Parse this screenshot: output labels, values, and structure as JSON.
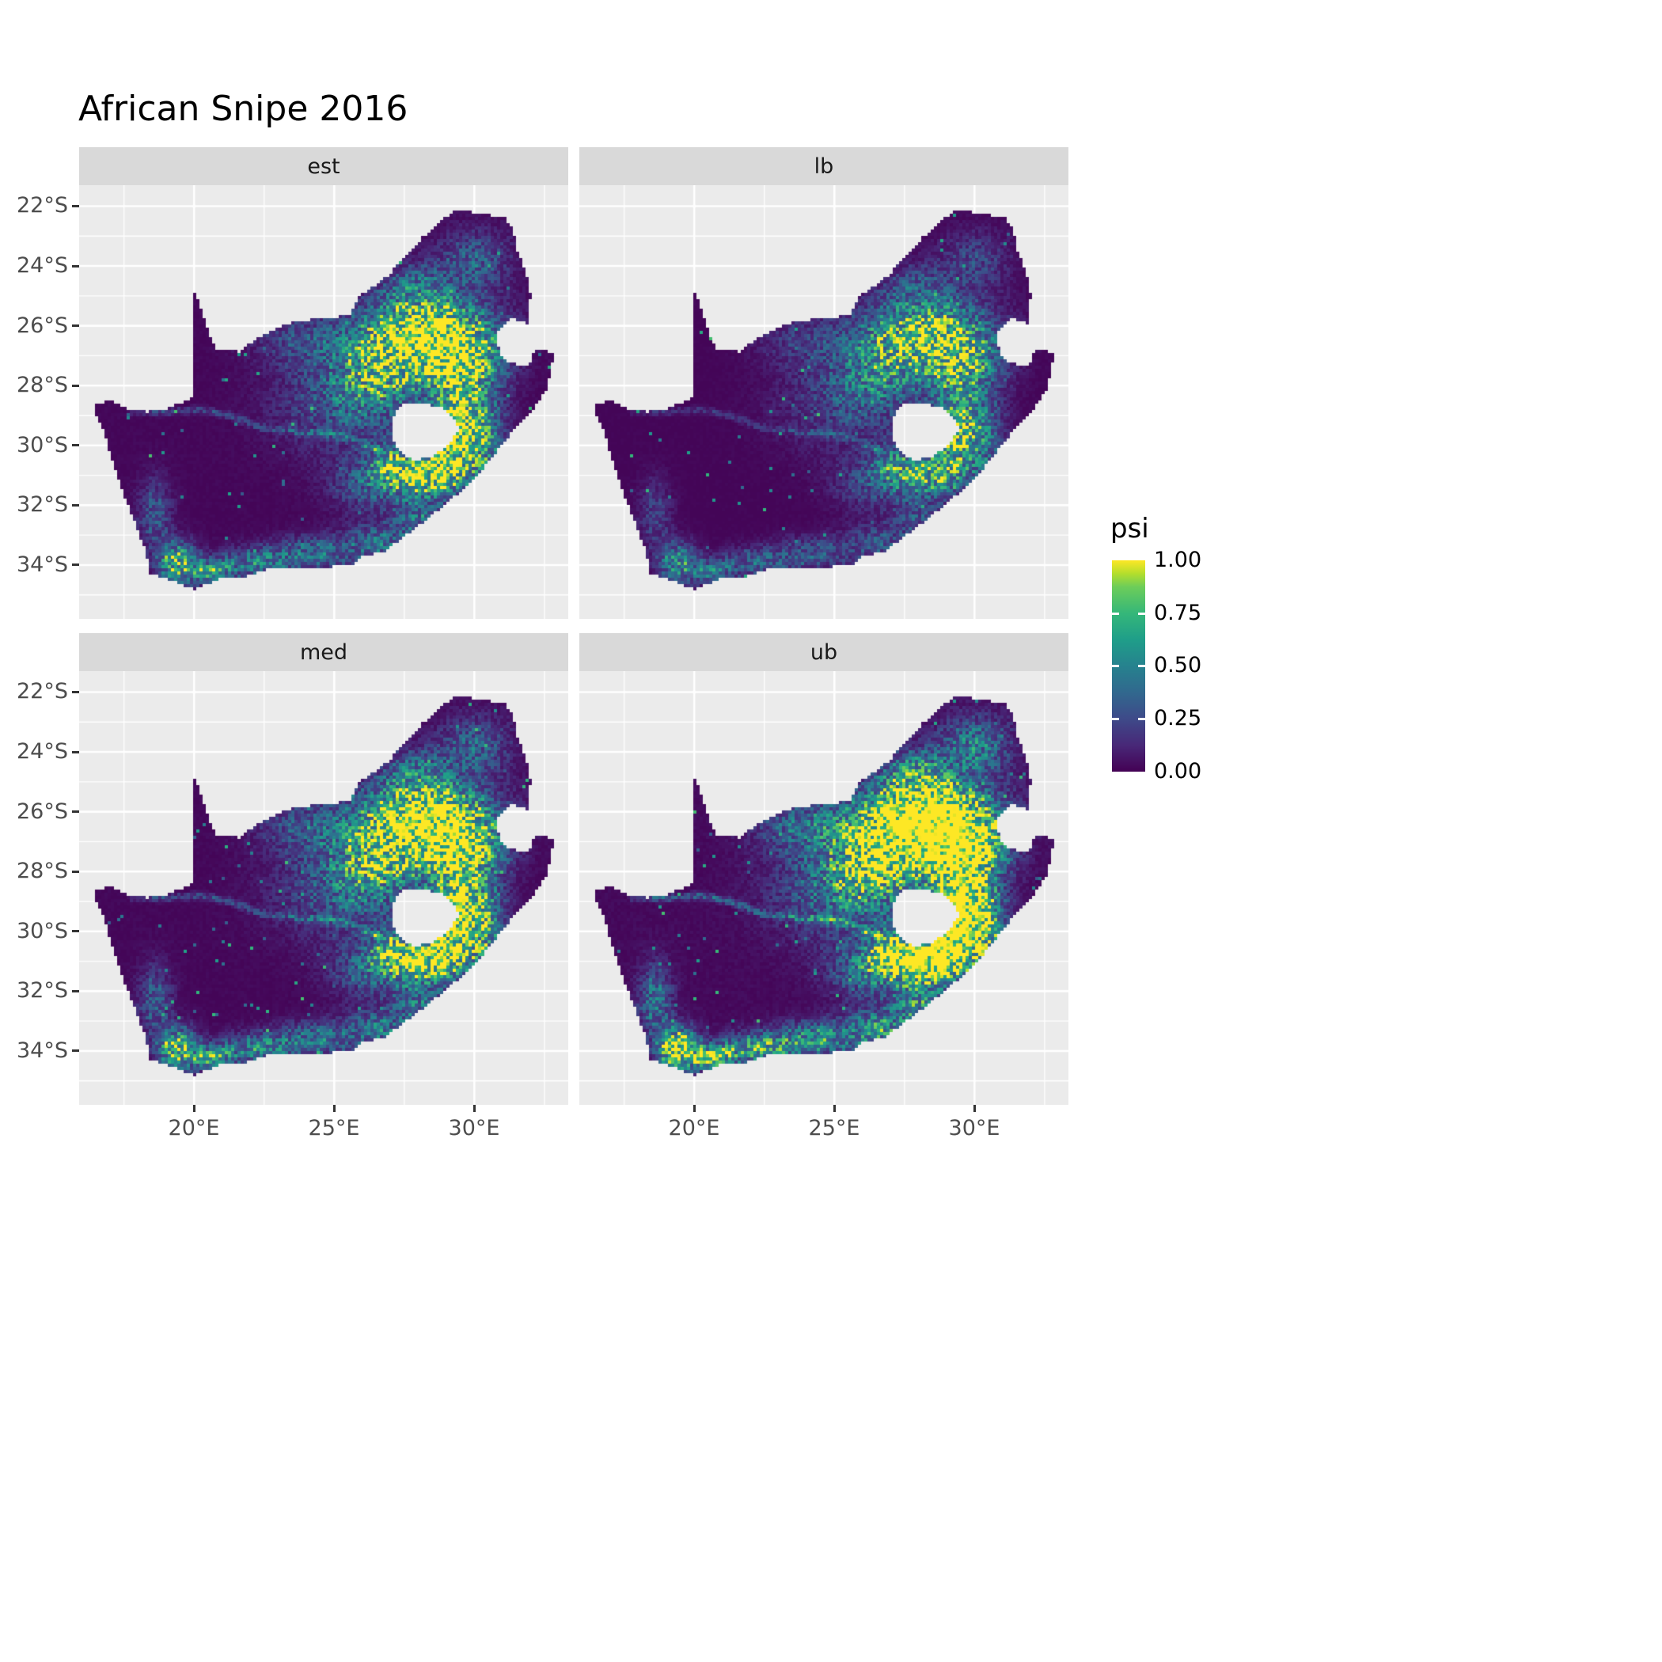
{
  "chart_data": {
    "type": "heatmap",
    "title": "African Snipe 2016",
    "subtitle": "",
    "facet_labels": [
      "est",
      "lb",
      "med",
      "ub"
    ],
    "legend_title": "psi",
    "legend_tick_labels": [
      "1.00",
      "0.75",
      "0.50",
      "0.25",
      "0.00"
    ],
    "legend_breaks": [
      1.0,
      0.75,
      0.5,
      0.25,
      0.0
    ],
    "value_range": [
      0,
      1
    ],
    "palette": "viridis",
    "palette_viridis": [
      [
        0,
        "#440154"
      ],
      [
        0.125,
        "#482878"
      ],
      [
        0.25,
        "#3E4A89"
      ],
      [
        0.375,
        "#31688E"
      ],
      [
        0.5,
        "#26828E"
      ],
      [
        0.625,
        "#1F9E89"
      ],
      [
        0.75,
        "#35B779"
      ],
      [
        0.875,
        "#6DCD59"
      ],
      [
        0.9375,
        "#B4DE2C"
      ],
      [
        1,
        "#FDE725"
      ]
    ],
    "x_ticks": [
      {
        "lon": 20,
        "label": "20°E"
      },
      {
        "lon": 25,
        "label": "25°E"
      },
      {
        "lon": 30,
        "label": "30°E"
      }
    ],
    "y_ticks": [
      {
        "lat": -22,
        "label": "22°S"
      },
      {
        "lat": -24,
        "label": "24°S"
      },
      {
        "lat": -26,
        "label": "26°S"
      },
      {
        "lat": -28,
        "label": "28°S"
      },
      {
        "lat": -30,
        "label": "30°S"
      },
      {
        "lat": -32,
        "label": "32°S"
      },
      {
        "lat": -34,
        "label": "34°S"
      }
    ],
    "minor_x": [
      17.5,
      22.5,
      27.5,
      32.5
    ],
    "minor_y": [
      -23,
      -25,
      -27,
      -29,
      -31,
      -33,
      -35
    ],
    "lon_range": [
      15.9,
      33.35
    ],
    "lat_range": [
      -35.8,
      -21.3
    ],
    "region": "South Africa",
    "panel_bg": "#EBEBEB",
    "strip_bg": "#D9D9D9",
    "grid_color": "#FFFFFF",
    "axis_text_color": "#4D4D4D",
    "na_fill": "#440154",
    "facet_intensity": {
      "est": 1.0,
      "lb": 0.72,
      "med": 1.08,
      "ub": 1.45
    },
    "map_outline": [
      [
        16.45,
        -28.6
      ],
      [
        17.1,
        -28.52
      ],
      [
        17.6,
        -28.76
      ],
      [
        18.3,
        -28.88
      ],
      [
        19.1,
        -28.75
      ],
      [
        19.7,
        -28.5
      ],
      [
        19.99,
        -28.4
      ],
      [
        19.99,
        -24.77
      ],
      [
        20.2,
        -25.3
      ],
      [
        20.45,
        -26.0
      ],
      [
        20.65,
        -26.55
      ],
      [
        20.82,
        -26.82
      ],
      [
        21.6,
        -26.86
      ],
      [
        22.3,
        -26.4
      ],
      [
        23.0,
        -26.05
      ],
      [
        23.7,
        -25.85
      ],
      [
        24.4,
        -25.77
      ],
      [
        25.1,
        -25.7
      ],
      [
        25.55,
        -25.6
      ],
      [
        25.9,
        -25.0
      ],
      [
        26.4,
        -24.7
      ],
      [
        26.95,
        -24.3
      ],
      [
        27.55,
        -23.65
      ],
      [
        28.15,
        -23.05
      ],
      [
        28.8,
        -22.5
      ],
      [
        29.35,
        -22.15
      ],
      [
        29.9,
        -22.2
      ],
      [
        30.5,
        -22.3
      ],
      [
        31.1,
        -22.4
      ],
      [
        31.35,
        -22.7
      ],
      [
        31.55,
        -23.5
      ],
      [
        31.85,
        -24.2
      ],
      [
        32.0,
        -24.9
      ],
      [
        31.98,
        -25.6
      ],
      [
        31.95,
        -25.95
      ],
      [
        31.3,
        -25.75
      ],
      [
        30.8,
        -26.25
      ],
      [
        30.9,
        -26.9
      ],
      [
        31.2,
        -27.2
      ],
      [
        31.6,
        -27.32
      ],
      [
        31.97,
        -27.31
      ],
      [
        32.13,
        -26.85
      ],
      [
        32.89,
        -26.86
      ],
      [
        32.55,
        -28.2
      ],
      [
        32.0,
        -28.9
      ],
      [
        31.4,
        -29.5
      ],
      [
        30.8,
        -30.2
      ],
      [
        30.2,
        -30.9
      ],
      [
        29.55,
        -31.5
      ],
      [
        28.8,
        -32.1
      ],
      [
        28.0,
        -32.7
      ],
      [
        27.4,
        -33.1
      ],
      [
        26.8,
        -33.55
      ],
      [
        26.0,
        -33.72
      ],
      [
        25.65,
        -33.98
      ],
      [
        25.0,
        -34.05
      ],
      [
        24.2,
        -34.15
      ],
      [
        23.4,
        -34.1
      ],
      [
        22.6,
        -34.15
      ],
      [
        21.8,
        -34.4
      ],
      [
        21.0,
        -34.45
      ],
      [
        20.45,
        -34.65
      ],
      [
        20.0,
        -34.82
      ],
      [
        19.4,
        -34.6
      ],
      [
        18.85,
        -34.4
      ],
      [
        18.45,
        -34.3
      ],
      [
        18.35,
        -34.0
      ],
      [
        18.3,
        -33.55
      ],
      [
        18.1,
        -33.1
      ],
      [
        17.9,
        -32.6
      ],
      [
        17.65,
        -32.0
      ],
      [
        17.35,
        -31.3
      ],
      [
        17.1,
        -30.6
      ],
      [
        16.9,
        -29.9
      ],
      [
        16.7,
        -29.3
      ],
      [
        16.47,
        -28.9
      ]
    ],
    "lesotho_hole": [
      [
        27.05,
        -29.1
      ],
      [
        27.45,
        -28.62
      ],
      [
        28.15,
        -28.58
      ],
      [
        28.85,
        -28.75
      ],
      [
        29.35,
        -29.15
      ],
      [
        29.45,
        -29.5
      ],
      [
        29.1,
        -29.95
      ],
      [
        28.55,
        -30.35
      ],
      [
        27.9,
        -30.52
      ],
      [
        27.4,
        -30.28
      ],
      [
        27.05,
        -29.7
      ]
    ],
    "river_trace": [
      [
        17.8,
        -28.85
      ],
      [
        19.0,
        -28.9
      ],
      [
        20.2,
        -28.8
      ],
      [
        21.3,
        -29.0
      ],
      [
        22.4,
        -29.4
      ],
      [
        23.6,
        -29.55
      ],
      [
        24.8,
        -29.6
      ],
      [
        25.8,
        -29.85
      ],
      [
        26.8,
        -30.25
      ]
    ],
    "hotspots": [
      {
        "x": 28.3,
        "y": -26.3,
        "sx": 1.5,
        "sy": 0.85,
        "a": 1.15
      },
      {
        "x": 29.6,
        "y": -27.4,
        "sx": 0.9,
        "sy": 0.8,
        "a": 0.75
      },
      {
        "x": 26.6,
        "y": -27.6,
        "sx": 1.1,
        "sy": 0.9,
        "a": 0.5
      },
      {
        "x": 29.35,
        "y": -29.6,
        "sx": 0.55,
        "sy": 0.9,
        "a": 1.0
      },
      {
        "x": 28.4,
        "y": -31.0,
        "sx": 0.9,
        "sy": 0.5,
        "a": 0.9
      },
      {
        "x": 27.1,
        "y": -30.6,
        "sx": 0.6,
        "sy": 0.5,
        "a": 0.5
      },
      {
        "x": 30.2,
        "y": -29.2,
        "sx": 0.6,
        "sy": 0.7,
        "a": 0.4
      },
      {
        "x": 30.5,
        "y": -30.3,
        "sx": 0.5,
        "sy": 0.6,
        "a": 0.35
      },
      {
        "x": 25.3,
        "y": -28.6,
        "sx": 1.6,
        "sy": 1.1,
        "a": 0.28
      },
      {
        "x": 26.3,
        "y": -31.3,
        "sx": 1.0,
        "sy": 0.6,
        "a": 0.3
      },
      {
        "x": 19.4,
        "y": -33.9,
        "sx": 0.45,
        "sy": 0.45,
        "a": 0.8
      },
      {
        "x": 20.6,
        "y": -34.2,
        "sx": 0.6,
        "sy": 0.3,
        "a": 0.55
      },
      {
        "x": 22.3,
        "y": -33.9,
        "sx": 0.8,
        "sy": 0.35,
        "a": 0.45
      },
      {
        "x": 24.3,
        "y": -33.6,
        "sx": 0.9,
        "sy": 0.4,
        "a": 0.4
      },
      {
        "x": 26.5,
        "y": -33.3,
        "sx": 0.8,
        "sy": 0.45,
        "a": 0.38
      },
      {
        "x": 28.0,
        "y": -32.5,
        "sx": 0.7,
        "sy": 0.5,
        "a": 0.35
      },
      {
        "x": 18.6,
        "y": -32.3,
        "sx": 0.4,
        "sy": 0.8,
        "a": 0.3
      },
      {
        "x": 24.0,
        "y": -26.5,
        "sx": 1.2,
        "sy": 0.6,
        "a": 0.25
      },
      {
        "x": 30.0,
        "y": -23.8,
        "sx": 0.9,
        "sy": 0.7,
        "a": 0.3
      },
      {
        "x": 27.8,
        "y": -24.6,
        "sx": 0.8,
        "sy": 0.5,
        "a": 0.3
      }
    ]
  }
}
